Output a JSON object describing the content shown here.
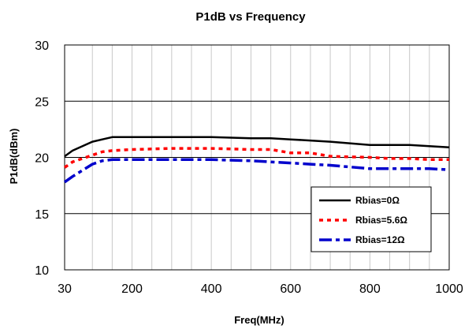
{
  "chart_data": {
    "type": "line",
    "title": "P1dB vs Frequency",
    "xlabel": "Freq(MHz)",
    "ylabel": "P1dB(dBm)",
    "xlim": [
      30,
      1000
    ],
    "ylim": [
      10,
      30
    ],
    "x_ticks": [
      30,
      200,
      400,
      600,
      800,
      1000
    ],
    "x_tick_labels": [
      "30",
      "200",
      "400",
      "600",
      "800",
      "1000"
    ],
    "x_gridlines": [
      30,
      100,
      150,
      200,
      250,
      300,
      350,
      400,
      450,
      500,
      550,
      600,
      650,
      700,
      750,
      800,
      850,
      900,
      950,
      1000
    ],
    "y_ticks": [
      10,
      15,
      20,
      25,
      30
    ],
    "y_tick_labels": [
      "10",
      "15",
      "20",
      "25",
      "30"
    ],
    "grid": true,
    "legend_position": "lower-right",
    "series": [
      {
        "name": "Rbias=0Ω",
        "color": "#000000",
        "style": "solid",
        "x": [
          30,
          50,
          100,
          125,
          150,
          200,
          300,
          400,
          500,
          550,
          600,
          650,
          700,
          800,
          850,
          900,
          950,
          1000
        ],
        "y": [
          20.1,
          20.6,
          21.4,
          21.6,
          21.8,
          21.8,
          21.8,
          21.8,
          21.7,
          21.7,
          21.6,
          21.5,
          21.4,
          21.1,
          21.1,
          21.1,
          21.0,
          20.9
        ]
      },
      {
        "name": "Rbias=5.6Ω",
        "color": "#ff0000",
        "style": "dotted",
        "x": [
          30,
          50,
          100,
          125,
          150,
          200,
          300,
          400,
          500,
          550,
          600,
          650,
          700,
          800,
          850,
          900,
          950,
          1000
        ],
        "y": [
          19.1,
          19.6,
          20.2,
          20.5,
          20.6,
          20.7,
          20.8,
          20.8,
          20.7,
          20.7,
          20.4,
          20.4,
          20.1,
          20.0,
          19.9,
          19.9,
          19.8,
          19.8
        ]
      },
      {
        "name": "Rbias=12Ω",
        "color": "#0000cc",
        "style": "dashdot",
        "x": [
          30,
          50,
          100,
          125,
          150,
          200,
          300,
          400,
          500,
          550,
          600,
          650,
          700,
          800,
          850,
          900,
          950,
          1000
        ],
        "y": [
          17.8,
          18.3,
          19.4,
          19.7,
          19.8,
          19.8,
          19.8,
          19.8,
          19.7,
          19.6,
          19.5,
          19.4,
          19.3,
          19.0,
          19.0,
          19.0,
          19.0,
          18.9
        ]
      }
    ]
  }
}
